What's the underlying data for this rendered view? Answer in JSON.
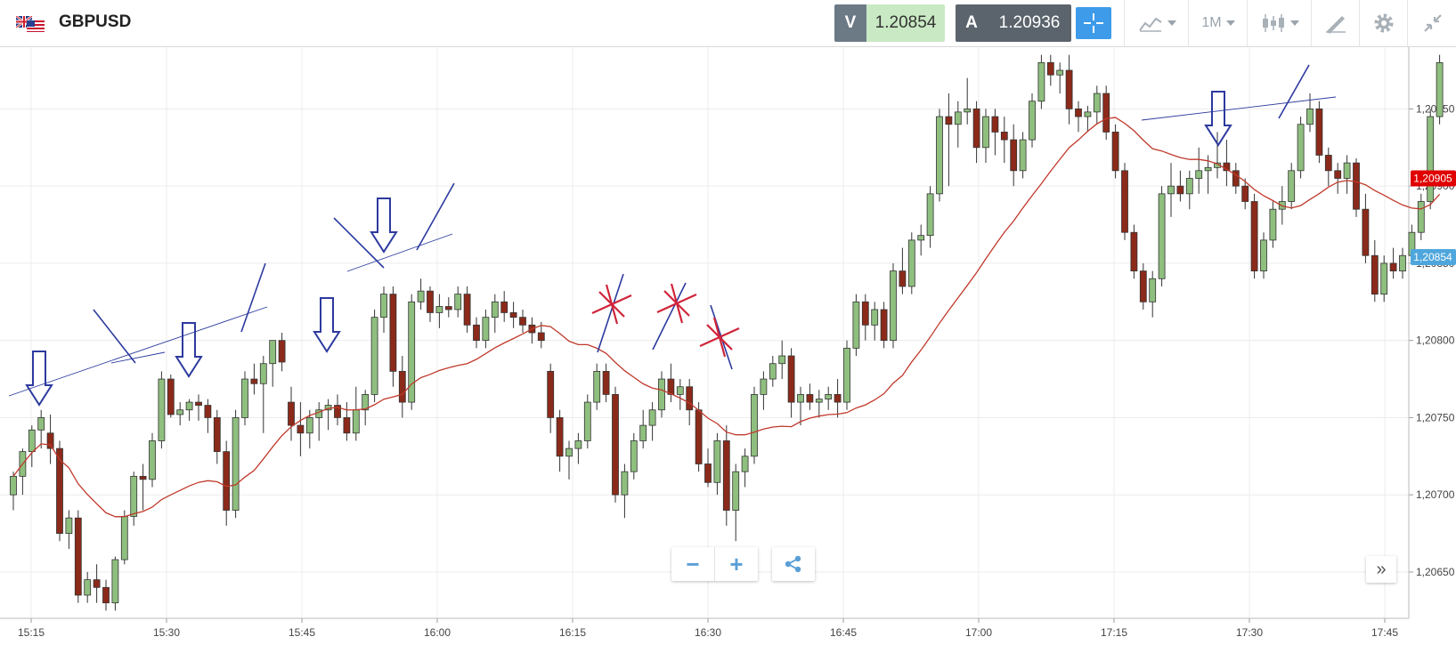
{
  "header": {
    "symbol": "GBPUSD",
    "flag_icon": "gb-us-flag-icon",
    "sell": {
      "label": "V",
      "price": "1.20854"
    },
    "buy": {
      "label": "A",
      "price": "1.20936"
    },
    "timeframe": "1M",
    "icons": [
      "crosshair-icon",
      "chart-type-icon",
      "candlestick-icon",
      "draw-icon",
      "gear-icon",
      "collapse-icon"
    ]
  },
  "controls": {
    "zoom_out": "−",
    "zoom_in": "+",
    "scroll_icon": "»"
  },
  "chart_data": {
    "type": "candlestick",
    "symbol": "GBPUSD",
    "interval": "1M",
    "x_ticks": [
      "15:15",
      "15:30",
      "15:45",
      "16:00",
      "16:15",
      "16:30",
      "16:45",
      "17:00",
      "17:15",
      "17:30",
      "17:45"
    ],
    "y_ticks": [
      "1,20650",
      "1,20700",
      "1,20750",
      "1,20800",
      "1,20850",
      "1,20900",
      "1,20950"
    ],
    "ylim": [
      1.2062,
      1.2099
    ],
    "price_tags": [
      {
        "label": "1,20905",
        "value": 1.20905,
        "color": "#e00000"
      },
      {
        "label": "1,20854",
        "value": 1.20854,
        "color": "#4ea6dc"
      }
    ],
    "up_color": "#8fbf7f",
    "down_color": "#8b2a1a",
    "ma_color": "#c0392b",
    "grid": true,
    "candles": [
      [
        1.207,
        1.20715,
        1.2069,
        1.20712
      ],
      [
        1.20712,
        1.2073,
        1.207,
        1.20728
      ],
      [
        1.20728,
        1.20745,
        1.20718,
        1.20742
      ],
      [
        1.20742,
        1.20755,
        1.2073,
        1.2075
      ],
      [
        1.2074,
        1.20752,
        1.2072,
        1.2073
      ],
      [
        1.2073,
        1.20735,
        1.2067,
        1.20675
      ],
      [
        1.20675,
        1.2069,
        1.20665,
        1.20685
      ],
      [
        1.20685,
        1.2069,
        1.2063,
        1.20635
      ],
      [
        1.20635,
        1.2065,
        1.2063,
        1.20645
      ],
      [
        1.20645,
        1.20655,
        1.2063,
        1.2064
      ],
      [
        1.2064,
        1.20645,
        1.20625,
        1.2063
      ],
      [
        1.2063,
        1.2066,
        1.20625,
        1.20658
      ],
      [
        1.20658,
        1.2069,
        1.20655,
        1.20686
      ],
      [
        1.20686,
        1.20715,
        1.2068,
        1.20712
      ],
      [
        1.20712,
        1.2072,
        1.2069,
        1.2071
      ],
      [
        1.2071,
        1.2074,
        1.20705,
        1.20735
      ],
      [
        1.20735,
        1.2078,
        1.2073,
        1.20775
      ],
      [
        1.20775,
        1.20778,
        1.2075,
        1.20752
      ],
      [
        1.20752,
        1.2076,
        1.20745,
        1.20755
      ],
      [
        1.20755,
        1.20762,
        1.20748,
        1.2076
      ],
      [
        1.2076,
        1.20765,
        1.20748,
        1.20758
      ],
      [
        1.20758,
        1.20762,
        1.2074,
        1.2075
      ],
      [
        1.2075,
        1.20755,
        1.2072,
        1.20728
      ],
      [
        1.20728,
        1.20735,
        1.2068,
        1.2069
      ],
      [
        1.2069,
        1.20755,
        1.20685,
        1.2075
      ],
      [
        1.2075,
        1.2078,
        1.20745,
        1.20775
      ],
      [
        1.20775,
        1.20785,
        1.20765,
        1.20772
      ],
      [
        1.20772,
        1.2079,
        1.2074,
        1.20785
      ],
      [
        1.20785,
        1.208,
        1.2077,
        1.208
      ],
      [
        1.208,
        1.20805,
        1.2078,
        1.20786
      ],
      [
        1.2076,
        1.2077,
        1.20735,
        1.20745
      ],
      [
        1.20745,
        1.2076,
        1.20725,
        1.2074
      ],
      [
        1.2074,
        1.20755,
        1.2073,
        1.2075
      ],
      [
        1.2075,
        1.2076,
        1.20735,
        1.20755
      ],
      [
        1.20755,
        1.20762,
        1.20742,
        1.20758
      ],
      [
        1.20758,
        1.20765,
        1.20745,
        1.2075
      ],
      [
        1.2075,
        1.2076,
        1.20735,
        1.2074
      ],
      [
        1.2074,
        1.2077,
        1.20735,
        1.20755
      ],
      [
        1.20755,
        1.20768,
        1.20745,
        1.20765
      ],
      [
        1.20765,
        1.2082,
        1.2076,
        1.20815
      ],
      [
        1.20815,
        1.20835,
        1.20805,
        1.2083
      ],
      [
        1.2083,
        1.20835,
        1.2077,
        1.2078
      ],
      [
        1.2078,
        1.2079,
        1.2075,
        1.2076
      ],
      [
        1.2076,
        1.2083,
        1.20755,
        1.20825
      ],
      [
        1.20825,
        1.2084,
        1.2082,
        1.20832
      ],
      [
        1.20832,
        1.20835,
        1.20812,
        1.20818
      ],
      [
        1.20818,
        1.2083,
        1.20808,
        1.20822
      ],
      [
        1.20822,
        1.20828,
        1.20815,
        1.2082
      ],
      [
        1.2082,
        1.20835,
        1.20815,
        1.2083
      ],
      [
        1.2083,
        1.20835,
        1.20805,
        1.2081
      ],
      [
        1.2081,
        1.20815,
        1.20795,
        1.208
      ],
      [
        1.208,
        1.2082,
        1.20795,
        1.20815
      ],
      [
        1.20815,
        1.2083,
        1.20805,
        1.20825
      ],
      [
        1.20825,
        1.20832,
        1.20812,
        1.20818
      ],
      [
        1.20818,
        1.20825,
        1.20808,
        1.20815
      ],
      [
        1.20815,
        1.2082,
        1.20805,
        1.2081
      ],
      [
        1.2081,
        1.20815,
        1.20798,
        1.20805
      ],
      [
        1.20805,
        1.20812,
        1.20795,
        1.208
      ],
      [
        1.2078,
        1.20785,
        1.2074,
        1.2075
      ],
      [
        1.2075,
        1.20755,
        1.20715,
        1.20725
      ],
      [
        1.20725,
        1.20735,
        1.2071,
        1.2073
      ],
      [
        1.2073,
        1.2074,
        1.2072,
        1.20735
      ],
      [
        1.20735,
        1.20765,
        1.2073,
        1.2076
      ],
      [
        1.2076,
        1.20785,
        1.20755,
        1.2078
      ],
      [
        1.2078,
        1.20785,
        1.2076,
        1.20765
      ],
      [
        1.20765,
        1.2077,
        1.20695,
        1.207
      ],
      [
        1.207,
        1.2072,
        1.20685,
        1.20715
      ],
      [
        1.20715,
        1.2074,
        1.2071,
        1.20735
      ],
      [
        1.20735,
        1.20755,
        1.2073,
        1.20745
      ],
      [
        1.20745,
        1.2076,
        1.20735,
        1.20755
      ],
      [
        1.20755,
        1.2078,
        1.2075,
        1.20775
      ],
      [
        1.20775,
        1.20785,
        1.2076,
        1.20765
      ],
      [
        1.20765,
        1.20775,
        1.20755,
        1.2077
      ],
      [
        1.2077,
        1.20775,
        1.20745,
        1.20755
      ],
      [
        1.20755,
        1.2076,
        1.20715,
        1.2072
      ],
      [
        1.2072,
        1.2073,
        1.20705,
        1.20708
      ],
      [
        1.20708,
        1.2074,
        1.207,
        1.20735
      ],
      [
        1.20735,
        1.20745,
        1.2068,
        1.2069
      ],
      [
        1.2069,
        1.2072,
        1.2067,
        1.20715
      ],
      [
        1.20715,
        1.2073,
        1.20705,
        1.20725
      ],
      [
        1.20725,
        1.2077,
        1.2072,
        1.20765
      ],
      [
        1.20765,
        1.2078,
        1.20755,
        1.20775
      ],
      [
        1.20775,
        1.2079,
        1.2077,
        1.20785
      ],
      [
        1.20785,
        1.208,
        1.20775,
        1.2079
      ],
      [
        1.2079,
        1.20795,
        1.2075,
        1.2076
      ],
      [
        1.2076,
        1.2077,
        1.20745,
        1.20765
      ],
      [
        1.20765,
        1.20772,
        1.20755,
        1.2076
      ],
      [
        1.2076,
        1.20768,
        1.2075,
        1.20762
      ],
      [
        1.20762,
        1.2077,
        1.20755,
        1.20765
      ],
      [
        1.20765,
        1.20775,
        1.2075,
        1.2076
      ],
      [
        1.2076,
        1.208,
        1.20755,
        1.20795
      ],
      [
        1.20795,
        1.2083,
        1.2079,
        1.20825
      ],
      [
        1.20825,
        1.2083,
        1.208,
        1.2081
      ],
      [
        1.2081,
        1.20825,
        1.208,
        1.2082
      ],
      [
        1.2082,
        1.20825,
        1.20795,
        1.208
      ],
      [
        1.208,
        1.2085,
        1.20795,
        1.20845
      ],
      [
        1.20845,
        1.2086,
        1.2083,
        1.20835
      ],
      [
        1.20835,
        1.2087,
        1.2083,
        1.20865
      ],
      [
        1.20865,
        1.20875,
        1.20855,
        1.20868
      ],
      [
        1.20868,
        1.209,
        1.2086,
        1.20895
      ],
      [
        1.20895,
        1.2095,
        1.2089,
        1.20945
      ],
      [
        1.20945,
        1.2096,
        1.209,
        1.2094
      ],
      [
        1.2094,
        1.20955,
        1.20925,
        1.20948
      ],
      [
        1.20948,
        1.2097,
        1.2094,
        1.2095
      ],
      [
        1.2095,
        1.20955,
        1.20915,
        1.20925
      ],
      [
        1.20925,
        1.2095,
        1.20915,
        1.20945
      ],
      [
        1.20945,
        1.2095,
        1.2092,
        1.20935
      ],
      [
        1.20935,
        1.20945,
        1.20915,
        1.2093
      ],
      [
        1.2093,
        1.2094,
        1.209,
        1.2091
      ],
      [
        1.2091,
        1.20935,
        1.20905,
        1.2093
      ],
      [
        1.2093,
        1.2096,
        1.20925,
        1.20955
      ],
      [
        1.20955,
        1.20985,
        1.2095,
        1.2098
      ],
      [
        1.2098,
        1.20985,
        1.20965,
        1.20972
      ],
      [
        1.20972,
        1.2098,
        1.2096,
        1.20975
      ],
      [
        1.20975,
        1.20985,
        1.2094,
        1.2095
      ],
      [
        1.2095,
        1.20955,
        1.20935,
        1.20945
      ],
      [
        1.20945,
        1.20952,
        1.20935,
        1.20948
      ],
      [
        1.20948,
        1.20965,
        1.2094,
        1.2096
      ],
      [
        1.2096,
        1.20965,
        1.2093,
        1.20935
      ],
      [
        1.20935,
        1.2094,
        1.20905,
        1.2091
      ],
      [
        1.2091,
        1.20915,
        1.20865,
        1.2087
      ],
      [
        1.2087,
        1.20875,
        1.2084,
        1.20845
      ],
      [
        1.20845,
        1.2085,
        1.2082,
        1.20825
      ],
      [
        1.20825,
        1.20845,
        1.20815,
        1.2084
      ],
      [
        1.2084,
        1.209,
        1.20835,
        1.20895
      ],
      [
        1.20895,
        1.20915,
        1.2088,
        1.209
      ],
      [
        1.209,
        1.2091,
        1.2089,
        1.20895
      ],
      [
        1.20895,
        1.2091,
        1.20885,
        1.20905
      ],
      [
        1.20905,
        1.20925,
        1.20895,
        1.2091
      ],
      [
        1.2091,
        1.2092,
        1.20895,
        1.20912
      ],
      [
        1.20912,
        1.20935,
        1.20905,
        1.20915
      ],
      [
        1.20915,
        1.2093,
        1.209,
        1.2091
      ],
      [
        1.2091,
        1.20915,
        1.20895,
        1.209
      ],
      [
        1.209,
        1.20905,
        1.20885,
        1.2089
      ],
      [
        1.2089,
        1.20895,
        1.2084,
        1.20845
      ],
      [
        1.20845,
        1.2087,
        1.2084,
        1.20865
      ],
      [
        1.20865,
        1.2089,
        1.2086,
        1.20885
      ],
      [
        1.20885,
        1.209,
        1.20875,
        1.2089
      ],
      [
        1.2089,
        1.20915,
        1.20885,
        1.2091
      ],
      [
        1.2091,
        1.20945,
        1.20905,
        1.2094
      ],
      [
        1.2094,
        1.2096,
        1.20935,
        1.2095
      ],
      [
        1.2095,
        1.20955,
        1.20915,
        1.2092
      ],
      [
        1.2092,
        1.20925,
        1.209,
        1.2091
      ],
      [
        1.2091,
        1.20915,
        1.20895,
        1.20905
      ],
      [
        1.20905,
        1.2092,
        1.20895,
        1.20915
      ],
      [
        1.20915,
        1.20918,
        1.2088,
        1.20885
      ],
      [
        1.20885,
        1.20895,
        1.2085,
        1.20855
      ],
      [
        1.20855,
        1.20865,
        1.20825,
        1.2083
      ],
      [
        1.2083,
        1.20855,
        1.20825,
        1.2085
      ],
      [
        1.2085,
        1.2086,
        1.2084,
        1.20845
      ],
      [
        1.20845,
        1.2086,
        1.2084,
        1.20855
      ],
      [
        1.20855,
        1.20875,
        1.2085,
        1.2087
      ],
      [
        1.2087,
        1.20895,
        1.20865,
        1.2089
      ],
      [
        1.2089,
        1.2095,
        1.20885,
        1.20945
      ],
      [
        1.20945,
        1.20985,
        1.2094,
        1.2098
      ]
    ]
  }
}
